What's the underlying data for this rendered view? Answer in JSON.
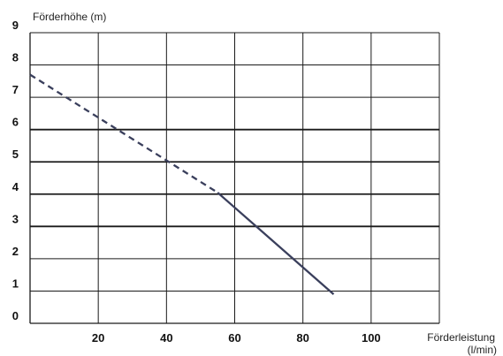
{
  "chart_data": {
    "type": "line",
    "title": "",
    "ylabel": "Förderhöhe (m)",
    "xlabel_line1": "Förderleistung",
    "xlabel_line2": "(l/min)",
    "xlim": [
      0,
      120
    ],
    "ylim": [
      0,
      9
    ],
    "x_ticks": [
      20,
      40,
      60,
      80,
      100
    ],
    "x_tick_labels": [
      "20",
      "40",
      "60",
      "80",
      "100"
    ],
    "y_ticks": [
      0,
      1,
      2,
      3,
      4,
      5,
      6,
      7,
      8,
      9
    ],
    "y_tick_labels": [
      "0",
      "1",
      "2",
      "3",
      "4",
      "5",
      "6",
      "7",
      "8",
      "9"
    ],
    "x_gridlines": [
      20,
      40,
      60,
      80,
      100,
      120
    ],
    "y_gridlines": [
      1,
      2,
      3,
      4,
      5,
      6,
      7,
      8,
      9
    ],
    "grid": true,
    "series": [
      {
        "style": "dashed",
        "color": "#3a3f5c",
        "x": [
          0,
          55
        ],
        "y": [
          7.7,
          4.05
        ]
      },
      {
        "style": "solid",
        "color": "#3a3f5c",
        "x": [
          55,
          89
        ],
        "y": [
          4.05,
          0.9
        ]
      }
    ]
  }
}
